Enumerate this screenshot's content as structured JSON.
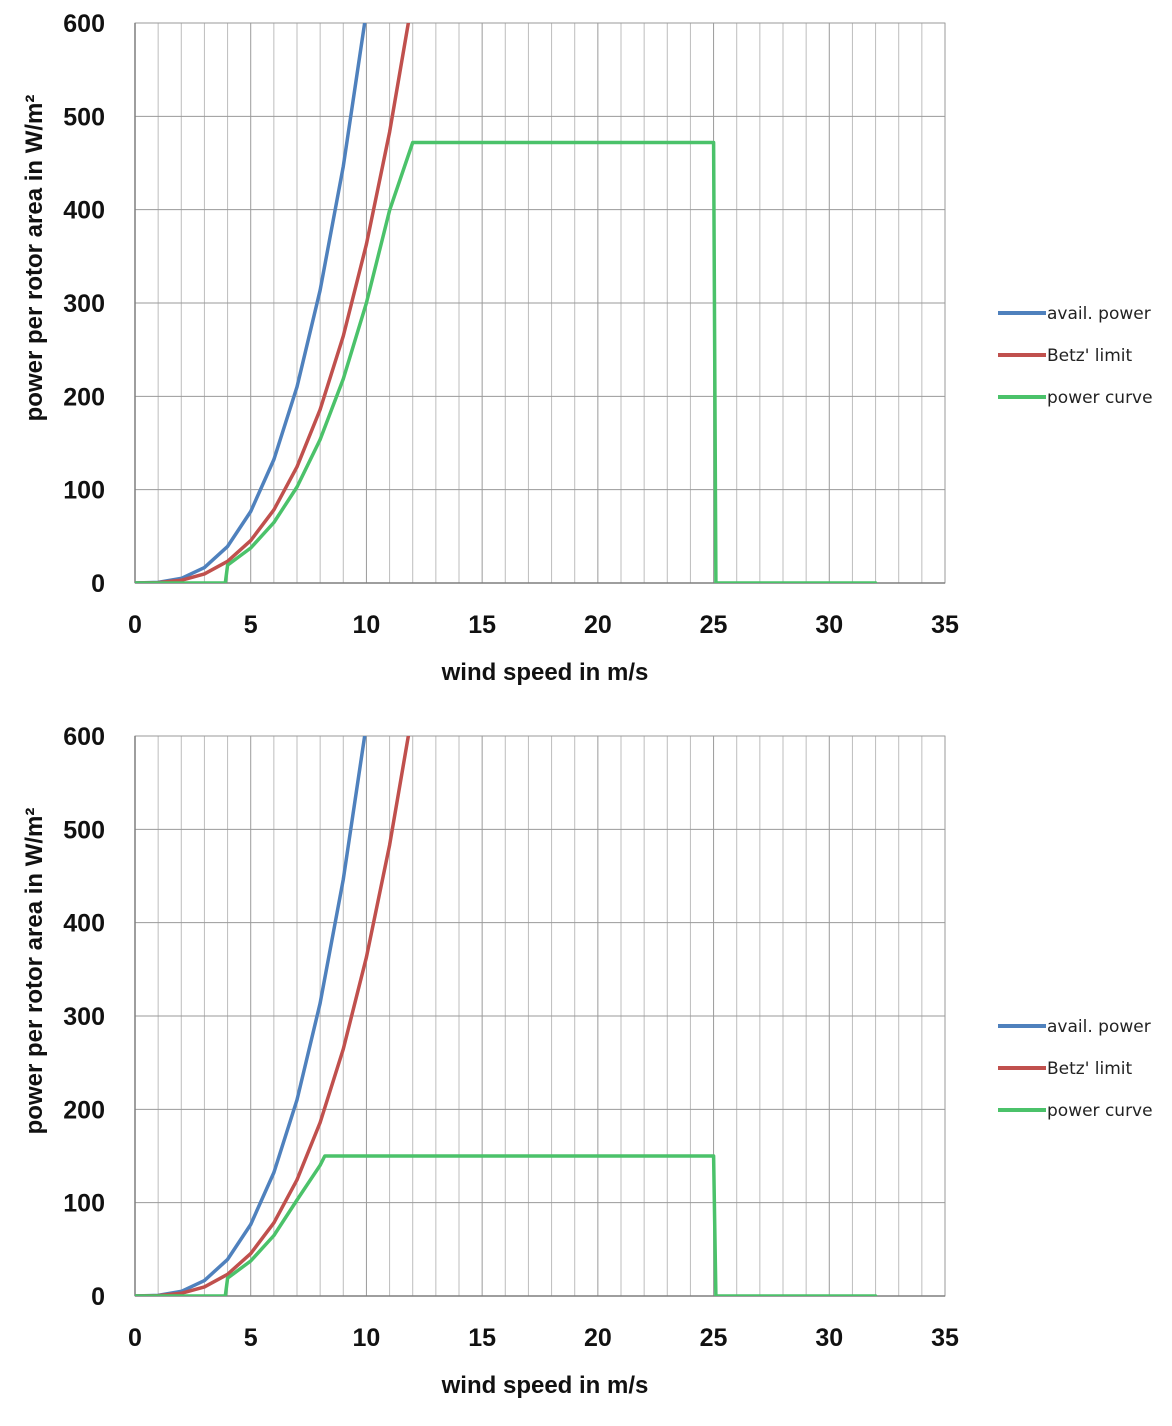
{
  "chart_data": [
    {
      "type": "line",
      "xlabel": "wind speed in m/s",
      "ylabel": "power per rotor area in W/m²",
      "xlim": [
        0,
        35
      ],
      "ylim": [
        0,
        600
      ],
      "xticks": [
        "0",
        "5",
        "10",
        "15",
        "20",
        "25",
        "30",
        "35"
      ],
      "yticks": [
        "0",
        "100",
        "200",
        "300",
        "400",
        "500",
        "600"
      ],
      "grid": true,
      "legend_position": "right",
      "series": [
        {
          "name": "avail. power",
          "color": "#4f81bd",
          "x": [
            0,
            1,
            2,
            3,
            4,
            5,
            6,
            7,
            8,
            9,
            10
          ],
          "y": [
            0,
            0.6,
            4.9,
            16.5,
            39.2,
            76.6,
            132.3,
            210.1,
            313.6,
            446.5,
            612.5
          ]
        },
        {
          "name": "Betz' limit",
          "color": "#c0504d",
          "x": [
            0,
            1,
            2,
            3,
            4,
            5,
            6,
            7,
            8,
            9,
            10,
            11,
            12
          ],
          "y": [
            0,
            0.4,
            2.9,
            9.8,
            23.2,
            45.4,
            78.4,
            124.5,
            185.8,
            264.6,
            362.9,
            483.1,
            627.2
          ]
        },
        {
          "name": "power curve",
          "color": "#4bc26a",
          "x": [
            0,
            3.9,
            4,
            5,
            6,
            7,
            8,
            9,
            10,
            11,
            12,
            25,
            25.1,
            32
          ],
          "y": [
            0,
            0,
            19.2,
            37.5,
            64.8,
            102.9,
            153.6,
            218.7,
            300.0,
            399.3,
            472,
            472,
            0,
            0
          ]
        }
      ]
    },
    {
      "type": "line",
      "xlabel": "wind speed in m/s",
      "ylabel": "power per rotor area in W/m²",
      "xlim": [
        0,
        35
      ],
      "ylim": [
        0,
        600
      ],
      "xticks": [
        "0",
        "5",
        "10",
        "15",
        "20",
        "25",
        "30",
        "35"
      ],
      "yticks": [
        "0",
        "100",
        "200",
        "300",
        "400",
        "500",
        "600"
      ],
      "grid": true,
      "legend_position": "right",
      "series": [
        {
          "name": "avail. power",
          "color": "#4f81bd",
          "x": [
            0,
            1,
            2,
            3,
            4,
            5,
            6,
            7,
            8,
            9,
            10
          ],
          "y": [
            0,
            0.6,
            4.9,
            16.5,
            39.2,
            76.6,
            132.3,
            210.1,
            313.6,
            446.5,
            612.5
          ]
        },
        {
          "name": "Betz' limit",
          "color": "#c0504d",
          "x": [
            0,
            1,
            2,
            3,
            4,
            5,
            6,
            7,
            8,
            9,
            10,
            11,
            12
          ],
          "y": [
            0,
            0.4,
            2.9,
            9.8,
            23.2,
            45.4,
            78.4,
            124.5,
            185.8,
            264.6,
            362.9,
            483.1,
            627.2
          ]
        },
        {
          "name": "power curve",
          "color": "#4bc26a",
          "x": [
            0,
            3.9,
            4,
            5,
            6,
            7,
            8,
            8.2,
            25,
            25.1,
            32
          ],
          "y": [
            0,
            0,
            19.2,
            37.5,
            64.8,
            102.9,
            140,
            150,
            150,
            0,
            0
          ]
        }
      ]
    }
  ]
}
